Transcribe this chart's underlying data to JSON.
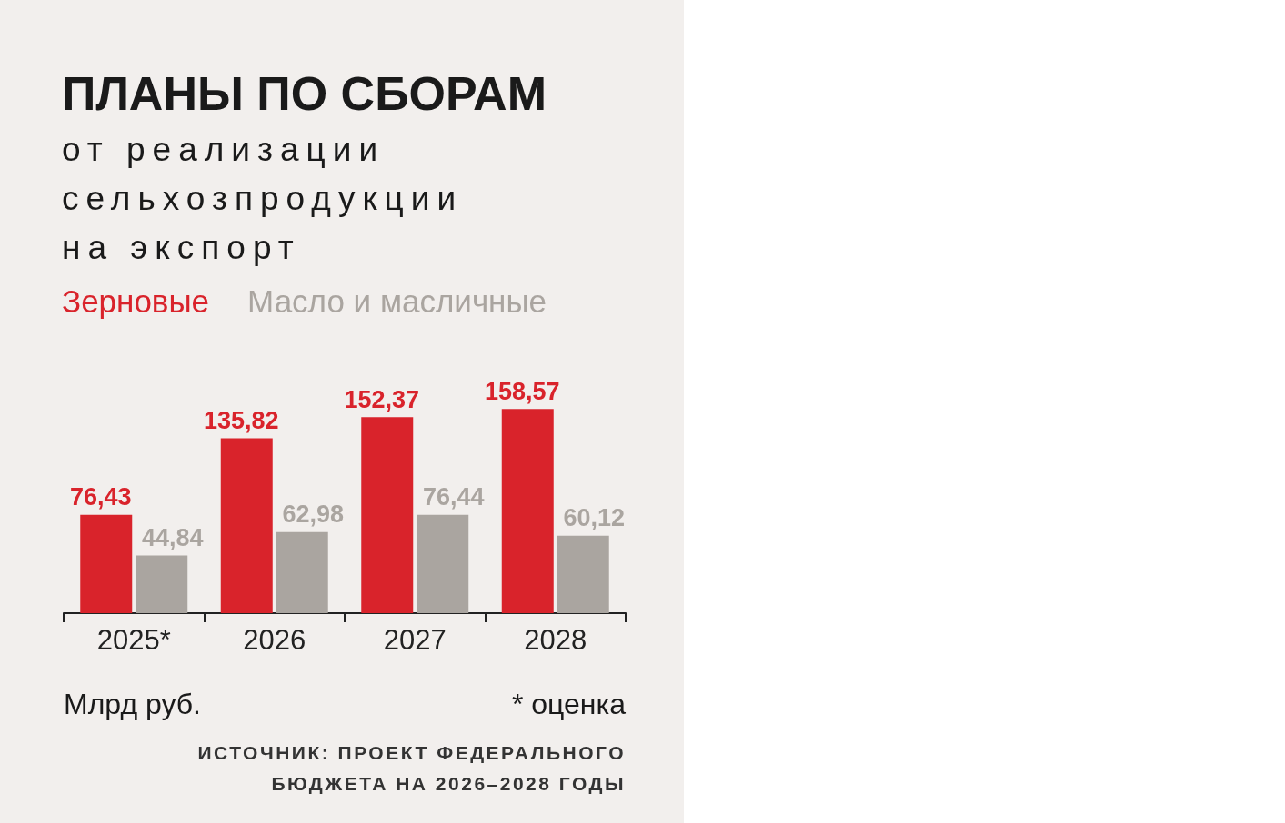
{
  "chart_data": {
    "type": "bar",
    "title": "ПЛАНЫ ПО СБОРАМ",
    "subtitle": "от реализации\nсельхозпродукции\nна экспорт",
    "categories": [
      "2025*",
      "2026",
      "2027",
      "2028"
    ],
    "series": [
      {
        "name": "Зерновые",
        "color": "#d9232b",
        "values": [
          76.43,
          135.82,
          152.37,
          158.57
        ],
        "value_labels": [
          "76,43",
          "135,82",
          "152,37",
          "158,57"
        ]
      },
      {
        "name": "Масло и масличные",
        "color": "#aaa5a0",
        "values": [
          44.84,
          62.98,
          76.44,
          60.12
        ],
        "value_labels": [
          "44,84",
          "62,98",
          "76,44",
          "60,12"
        ]
      }
    ],
    "legend": "top left",
    "grid": false,
    "annotations": [
      "Млрд руб.",
      "* оценка",
      "ИСТОЧНИК: ПРОЕКТ ФЕДЕРАЛЬНОГО\nБЮДЖЕТА НА 2026–2028 ГОДЫ"
    ]
  }
}
